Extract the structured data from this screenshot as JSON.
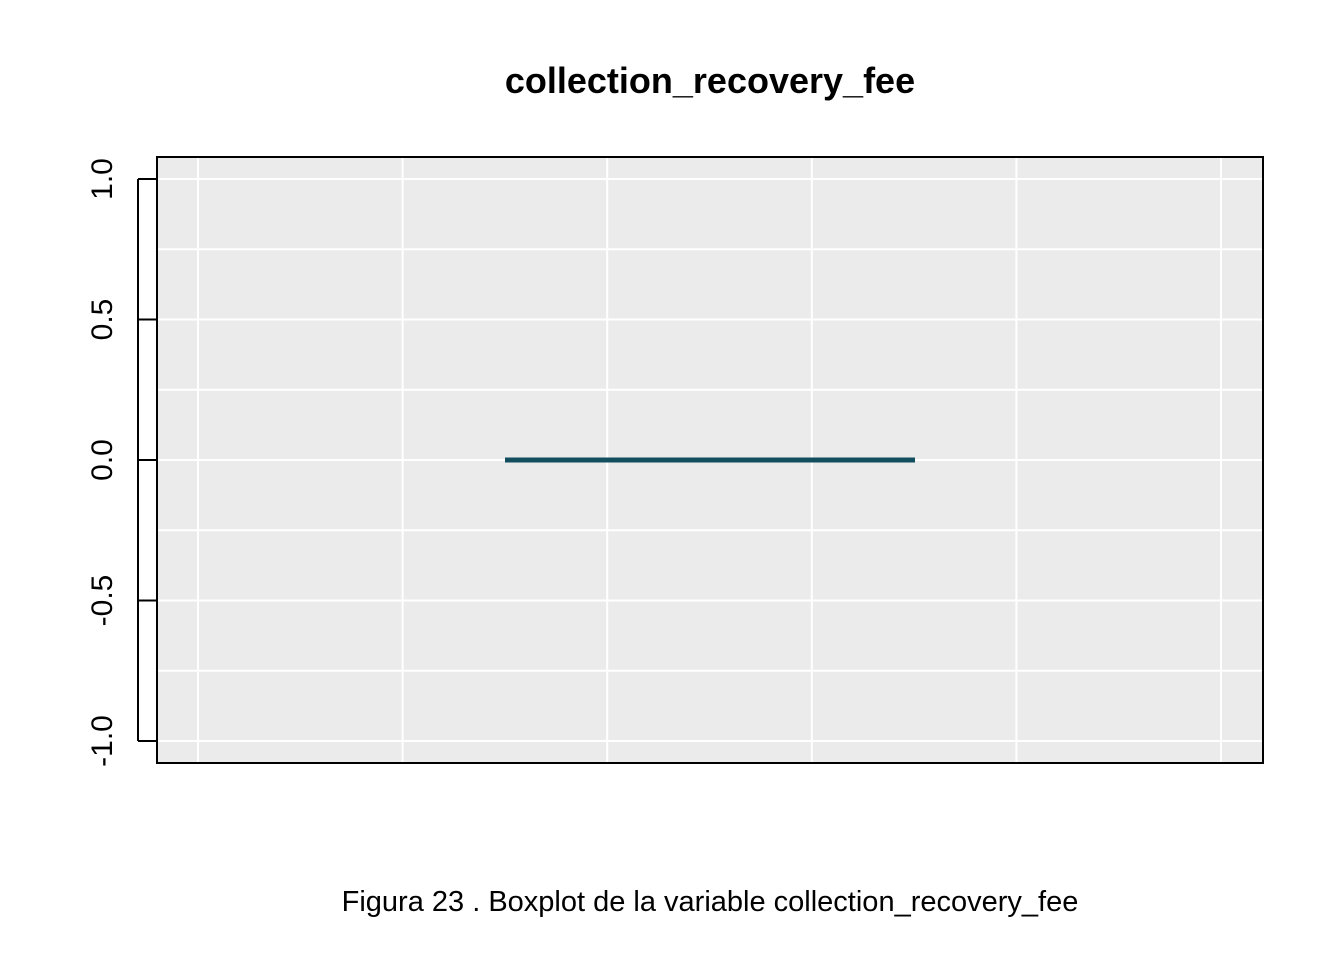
{
  "chart_data": {
    "type": "boxplot",
    "title": "collection_recovery_fee",
    "xlabel": "",
    "ylabel": "",
    "ylim": [
      -1.0,
      1.0
    ],
    "yticks": [
      -1.0,
      -0.5,
      0.0,
      0.5,
      1.0
    ],
    "ytick_labels": [
      "-1.0",
      "-0.5",
      "0.0",
      "0.5",
      "1.0"
    ],
    "y_minor_gridlines": [
      -0.75,
      -0.25,
      0.25,
      0.75
    ],
    "x_gridline_count": 6,
    "grid": true,
    "background_color": "#EBEBEB",
    "grid_color": "#FFFFFF",
    "box_color": "#124E5E",
    "box": {
      "min": 0.0,
      "q1": 0.0,
      "median": 0.0,
      "q3": 0.0,
      "max": 0.0
    }
  },
  "caption": "Figura  23 . Boxplot de la variable  collection_recovery_fee"
}
